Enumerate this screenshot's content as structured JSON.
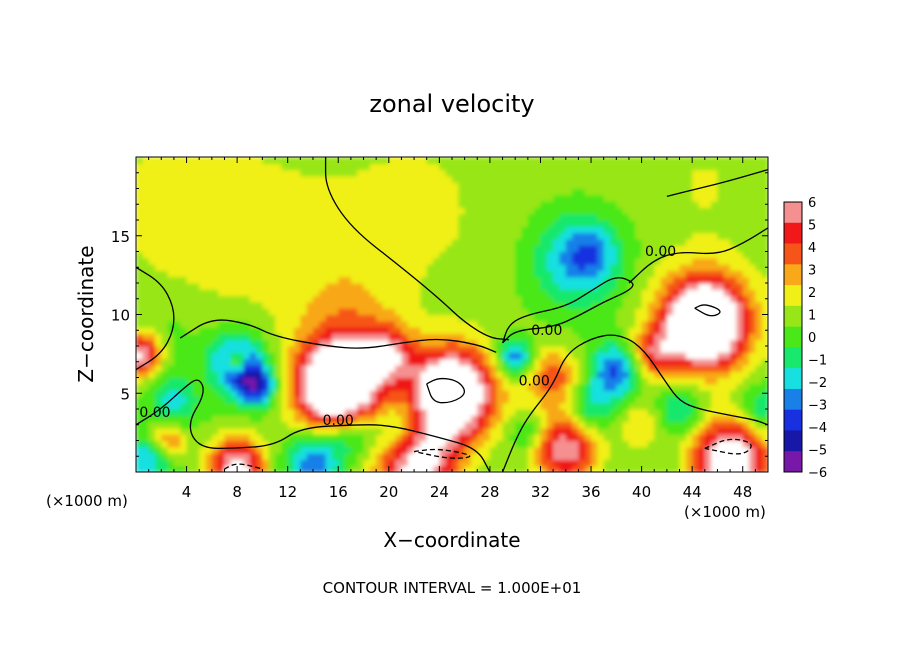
{
  "chart_data": {
    "type": "heatmap",
    "title": "zonal velocity",
    "xlabel": "X−coordinate",
    "ylabel": "Z−coordinate",
    "x_unit_left": "(×1000 m)",
    "x_unit_right": "(×1000 m)",
    "footer": "CONTOUR INTERVAL = 1.000E+01",
    "x_ticks": [
      "4",
      "8",
      "12",
      "16",
      "20",
      "24",
      "28",
      "32",
      "36",
      "40",
      "44",
      "48"
    ],
    "y_ticks": [
      "5",
      "10",
      "15"
    ],
    "xlim": [
      0,
      50
    ],
    "ylim": [
      0,
      20
    ],
    "colorbar": {
      "labels": [
        "6",
        "5",
        "4",
        "3",
        "2",
        "1",
        "0",
        "−1",
        "−2",
        "−3",
        "−4",
        "−5",
        "−6"
      ],
      "colors": [
        "#f59090",
        "#f01818",
        "#f65418",
        "#f8a818",
        "#f0f018",
        "#98e618",
        "#4ae818",
        "#18e86c",
        "#18e0e0",
        "#1880e8",
        "#1830e0",
        "#1818a8",
        "#7818a8"
      ]
    },
    "contour_labels": [
      {
        "x": 1.5,
        "y": 3.5,
        "text": "0.00"
      },
      {
        "x": 16.0,
        "y": 3.0,
        "text": "0.00"
      },
      {
        "x": 31.5,
        "y": 5.5,
        "text": "0.00"
      },
      {
        "x": 32.5,
        "y": 8.7,
        "text": "0.00"
      },
      {
        "x": 41.5,
        "y": 13.7,
        "text": "0.00"
      }
    ],
    "blobs": [
      {
        "x": 4,
        "y": 16,
        "r": 6,
        "v": 1.2
      },
      {
        "x": 12,
        "y": 14,
        "r": 6,
        "v": 1.0
      },
      {
        "x": 22,
        "y": 16,
        "r": 6,
        "v": 0.9
      },
      {
        "x": 17,
        "y": 9.5,
        "r": 4,
        "v": 1.8
      },
      {
        "x": 2,
        "y": 9,
        "r": 3,
        "v": -0.6
      },
      {
        "x": 45,
        "y": 18,
        "r": 4,
        "v": 0.6
      },
      {
        "x": 35,
        "y": 13.5,
        "r": 3.5,
        "v": -3.6
      },
      {
        "x": 36,
        "y": 14,
        "r": 1.8,
        "v": -1.5
      },
      {
        "x": 0.3,
        "y": 7.5,
        "r": 1.6,
        "v": 6.5
      },
      {
        "x": 3,
        "y": 4.5,
        "r": 1.8,
        "v": -2.5
      },
      {
        "x": 2.5,
        "y": 2,
        "r": 1.4,
        "v": 3.5
      },
      {
        "x": 8,
        "y": 7,
        "r": 2.2,
        "v": -4.5
      },
      {
        "x": 9.5,
        "y": 5.5,
        "r": 1.6,
        "v": -5.0
      },
      {
        "x": 8,
        "y": 7,
        "r": 0.8,
        "v": 4.0
      },
      {
        "x": 16,
        "y": 5.5,
        "r": 3.0,
        "v": 8.5
      },
      {
        "x": 16,
        "y": 5.5,
        "r": 4.0,
        "v": 3.0
      },
      {
        "x": 25,
        "y": 5,
        "r": 3.0,
        "v": 8.0
      },
      {
        "x": 25,
        "y": 5,
        "r": 4.2,
        "v": 2.5
      },
      {
        "x": 20,
        "y": 7.5,
        "r": 2.0,
        "v": 4.0
      },
      {
        "x": 21,
        "y": 2.5,
        "r": 2.5,
        "v": -4.0
      },
      {
        "x": 17,
        "y": 2.5,
        "r": 2.0,
        "v": -3.0
      },
      {
        "x": 14,
        "y": 0.6,
        "r": 2.2,
        "v": -4.0
      },
      {
        "x": 22,
        "y": 0.8,
        "r": 3.2,
        "v": 8.0
      },
      {
        "x": 8,
        "y": 0.3,
        "r": 2.2,
        "v": 7.0
      },
      {
        "x": 1,
        "y": 0.8,
        "r": 1.8,
        "v": -3.0
      },
      {
        "x": 30,
        "y": 7.3,
        "r": 1.4,
        "v": -4.5
      },
      {
        "x": 33,
        "y": 6,
        "r": 2.2,
        "v": 3.5
      },
      {
        "x": 34,
        "y": 1.5,
        "r": 2.6,
        "v": 6.0
      },
      {
        "x": 31,
        "y": 2.5,
        "r": 1.5,
        "v": -2.0
      },
      {
        "x": 36,
        "y": 4,
        "r": 2.0,
        "v": -2.5
      },
      {
        "x": 38,
        "y": 6.5,
        "r": 2.0,
        "v": -4.5
      },
      {
        "x": 41,
        "y": 7.5,
        "r": 1.8,
        "v": 4.0
      },
      {
        "x": 40,
        "y": 3.0,
        "r": 2.0,
        "v": 2.0
      },
      {
        "x": 45,
        "y": 9.5,
        "r": 2.8,
        "v": 9.0
      },
      {
        "x": 45,
        "y": 9.5,
        "r": 4.3,
        "v": 3.5
      },
      {
        "x": 47,
        "y": 0.8,
        "r": 3.0,
        "v": 8.0
      },
      {
        "x": 43,
        "y": 4,
        "r": 2.0,
        "v": -2.5
      },
      {
        "x": 49.5,
        "y": 4,
        "r": 1.8,
        "v": -2.5
      }
    ],
    "contours": [
      {
        "style": "solid",
        "points": [
          [
            15,
            20
          ],
          [
            15,
            18
          ],
          [
            17,
            15.5
          ],
          [
            21,
            13
          ],
          [
            24,
            11
          ],
          [
            26,
            9.5
          ],
          [
            28,
            8.5
          ],
          [
            29.5,
            8.4
          ]
        ]
      },
      {
        "style": "solid",
        "points": [
          [
            0,
            6.5
          ],
          [
            2,
            7.5
          ],
          [
            3,
            9
          ],
          [
            3,
            10.5
          ],
          [
            2,
            12
          ],
          [
            0,
            13
          ]
        ]
      },
      {
        "style": "solid",
        "points": [
          [
            0,
            3
          ],
          [
            2,
            4
          ],
          [
            4,
            5.5
          ],
          [
            5,
            6
          ],
          [
            5.5,
            5
          ],
          [
            4,
            3
          ],
          [
            5,
            1.5
          ],
          [
            8,
            1.5
          ],
          [
            11,
            1.7
          ],
          [
            13,
            2.8
          ],
          [
            17,
            3.0
          ],
          [
            20,
            3.0
          ],
          [
            24,
            2.2
          ],
          [
            27,
            1.5
          ],
          [
            28,
            0
          ]
        ]
      },
      {
        "style": "solid",
        "points": [
          [
            3.5,
            8.5
          ],
          [
            6,
            9.8
          ],
          [
            9,
            9.4
          ],
          [
            11,
            8.6
          ],
          [
            15,
            8.0
          ],
          [
            18,
            7.8
          ],
          [
            21,
            8.2
          ],
          [
            24,
            8.5
          ],
          [
            27,
            8.1
          ],
          [
            28.5,
            7.6
          ]
        ]
      },
      {
        "style": "solid",
        "points": [
          [
            29,
            8.2
          ],
          [
            30,
            9
          ],
          [
            33,
            9.2
          ],
          [
            35,
            9.9
          ],
          [
            37,
            10.8
          ],
          [
            39,
            11.5
          ],
          [
            39.5,
            12
          ],
          [
            38,
            12.5
          ],
          [
            36,
            11.5
          ],
          [
            34,
            10.5
          ],
          [
            31,
            10
          ],
          [
            29.5,
            9.4
          ],
          [
            29,
            8.2
          ]
        ]
      },
      {
        "style": "solid",
        "points": [
          [
            29,
            0
          ],
          [
            30,
            2
          ],
          [
            31,
            3.5
          ],
          [
            33,
            5.5
          ],
          [
            34,
            7.5
          ],
          [
            36,
            8.5
          ],
          [
            38,
            8.8
          ],
          [
            40,
            8
          ],
          [
            42,
            5.6
          ],
          [
            43,
            4.5
          ],
          [
            44.5,
            4
          ],
          [
            47,
            3.6
          ],
          [
            49,
            3.3
          ],
          [
            50,
            3.0
          ]
        ]
      },
      {
        "style": "solid",
        "points": [
          [
            39,
            12
          ],
          [
            41,
            13.5
          ],
          [
            43,
            14
          ],
          [
            46,
            13.8
          ],
          [
            48,
            14.5
          ],
          [
            50,
            15.5
          ]
        ]
      },
      {
        "style": "solid",
        "points": [
          [
            42,
            17.5
          ],
          [
            44.5,
            18
          ],
          [
            47,
            18.5
          ],
          [
            50,
            19.2
          ]
        ]
      },
      {
        "style": "solid",
        "points": [
          [
            23,
            5.6
          ],
          [
            24,
            6
          ],
          [
            25.5,
            5.8
          ],
          [
            26.2,
            5
          ],
          [
            25,
            4.4
          ],
          [
            23.5,
            4.4
          ],
          [
            23,
            5.6
          ]
        ]
      },
      {
        "style": "solid",
        "points": [
          [
            44.2,
            10.4
          ],
          [
            45,
            10.7
          ],
          [
            46.5,
            10.2
          ],
          [
            45.5,
            9.8
          ],
          [
            44.2,
            10.4
          ]
        ]
      },
      {
        "style": "dashed",
        "points": [
          [
            22,
            1.3
          ],
          [
            24,
            1.5
          ],
          [
            27,
            1.0
          ],
          [
            25,
            0.8
          ],
          [
            22,
            1.3
          ]
        ]
      },
      {
        "style": "dashed",
        "points": [
          [
            45,
            1.5
          ],
          [
            47,
            2.2
          ],
          [
            49,
            1.8
          ],
          [
            48,
            1.0
          ],
          [
            45,
            1.5
          ]
        ]
      },
      {
        "style": "dashed",
        "points": [
          [
            7,
            0.2
          ],
          [
            8,
            0.6
          ],
          [
            10,
            0.2
          ]
        ]
      }
    ]
  }
}
